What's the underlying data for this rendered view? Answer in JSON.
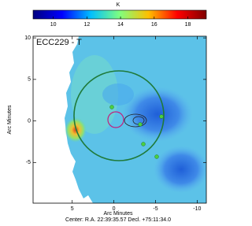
{
  "chart_data": {
    "type": "heatmap",
    "title": "ECC229 - T",
    "xlabel": "Arc Minutes",
    "ylabel": "Arc Minutes",
    "xlim": [
      9.7,
      -11.1
    ],
    "ylim": [
      -9.9,
      10.2
    ],
    "xticks": [
      5,
      0,
      -5,
      -10
    ],
    "yticks": [
      -5,
      0,
      5,
      10
    ],
    "footer": "Center: R.A. 22:39:35.57  Decl. +75:11:34.0",
    "colorbar": {
      "label": "K",
      "lim": [
        8.8,
        19.1
      ],
      "ticks": [
        10,
        12,
        14,
        16,
        18
      ],
      "colors": [
        "#00007f",
        "#0000ff",
        "#00bfff",
        "#7fff7f",
        "#ffbf00",
        "#ff0000",
        "#7f0000"
      ]
    }
  }
}
